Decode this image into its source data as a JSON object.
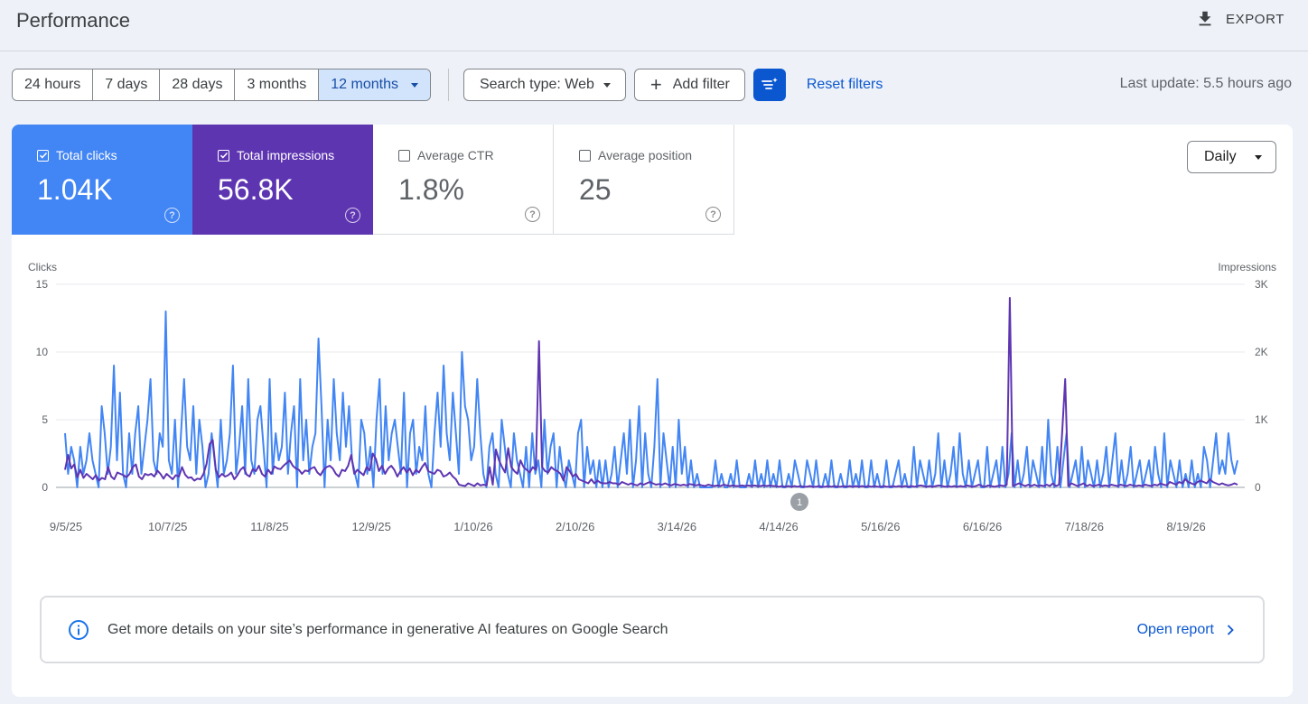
{
  "header": {
    "title": "Performance",
    "export_label": "EXPORT"
  },
  "filters": {
    "ranges": [
      {
        "label": "24 hours",
        "active": false
      },
      {
        "label": "7 days",
        "active": false
      },
      {
        "label": "28 days",
        "active": false
      },
      {
        "label": "3 months",
        "active": false
      },
      {
        "label": "12 months",
        "active": true
      }
    ],
    "search_type": "Search type: Web",
    "add_filter": "Add filter",
    "reset": "Reset filters",
    "last_update": "Last update: 5.5 hours ago"
  },
  "metrics": [
    {
      "label": "Total clicks",
      "value": "1.04K",
      "checked": true,
      "color": "#4285f4"
    },
    {
      "label": "Total impressions",
      "value": "56.8K",
      "checked": true,
      "color": "#5e35b1"
    },
    {
      "label": "Average CTR",
      "value": "1.8%",
      "checked": false
    },
    {
      "label": "Average position",
      "value": "25",
      "checked": false
    }
  ],
  "granularity": "Daily",
  "chart_data": {
    "type": "line",
    "y_left_label": "Clicks",
    "y_right_label": "Impressions",
    "y_left_ticks": [
      "15",
      "10",
      "5",
      "0"
    ],
    "y_right_ticks": [
      "3K",
      "2K",
      "1K",
      "0"
    ],
    "y_left_range": [
      0,
      15
    ],
    "y_right_range": [
      0,
      3000
    ],
    "x_ticks": [
      "9/5/25",
      "10/7/25",
      "11/8/25",
      "12/9/25",
      "1/10/26",
      "2/10/26",
      "3/14/26",
      "4/14/26",
      "5/16/26",
      "6/16/26",
      "7/18/26",
      "8/19/26"
    ],
    "annotation": "1",
    "grid": true,
    "series": [
      {
        "name": "Total clicks",
        "axis": "left",
        "color": "#4285f4",
        "values": [
          4,
          1,
          3,
          2,
          0,
          3,
          1,
          2,
          4,
          2,
          1,
          0,
          6,
          4,
          1,
          3,
          9,
          2,
          7,
          1,
          0,
          4,
          1,
          4,
          6,
          1,
          3,
          5,
          8,
          2,
          1,
          4,
          3,
          13,
          2,
          1,
          5,
          0,
          4,
          8,
          3,
          2,
          6,
          1,
          5,
          3,
          0,
          1,
          4,
          2,
          0,
          5,
          1,
          2,
          4,
          9,
          1,
          3,
          6,
          1,
          8,
          2,
          1,
          5,
          6,
          3,
          0,
          8,
          1,
          4,
          2,
          3,
          7,
          1,
          4,
          6,
          0,
          8,
          2,
          5,
          1,
          3,
          4,
          11,
          6,
          0,
          5,
          2,
          8,
          4,
          2,
          7,
          3,
          6,
          2,
          1,
          0,
          5,
          4,
          1,
          3,
          0,
          5,
          8,
          1,
          6,
          2,
          4,
          5,
          3,
          1,
          7,
          0,
          4,
          5,
          1,
          3,
          2,
          6,
          1,
          0,
          4,
          7,
          3,
          9,
          4,
          2,
          7,
          4,
          1,
          10,
          6,
          5,
          2,
          3,
          8,
          4,
          1,
          0,
          3,
          4,
          1,
          0,
          5,
          3,
          1,
          0,
          4,
          2,
          1,
          0,
          3,
          0,
          4,
          1,
          2,
          0,
          5,
          1,
          3,
          4,
          0,
          3,
          1,
          0,
          2,
          1,
          0,
          4,
          5,
          0,
          3,
          1,
          2,
          0,
          2,
          0,
          2,
          0,
          1,
          3,
          0,
          2,
          4,
          1,
          5,
          0,
          2,
          6,
          0,
          4,
          1,
          0,
          3,
          8,
          0,
          4,
          2,
          0,
          3,
          0,
          5,
          1,
          3,
          0,
          2,
          0,
          1,
          0,
          0,
          0,
          0,
          0,
          2,
          0,
          1,
          0,
          0,
          1,
          0,
          2,
          0,
          0,
          0,
          1,
          0,
          2,
          0,
          1,
          0,
          2,
          0,
          1,
          0,
          2,
          0,
          0,
          1,
          0,
          2,
          1,
          0,
          0,
          2,
          1,
          0,
          2,
          0,
          0,
          1,
          0,
          2,
          0,
          0,
          1,
          0,
          0,
          2,
          0,
          1,
          0,
          2,
          0,
          0,
          2,
          0,
          1,
          0,
          0,
          2,
          0,
          0,
          1,
          2,
          0,
          1,
          0,
          0,
          3,
          0,
          2,
          1,
          0,
          2,
          0,
          1,
          4,
          0,
          2,
          0,
          1,
          3,
          0,
          4,
          1,
          0,
          2,
          0,
          1,
          2,
          0,
          0,
          3,
          0,
          1,
          2,
          0,
          3,
          0,
          1,
          4,
          0,
          2,
          0,
          1,
          3,
          0,
          2,
          1,
          0,
          3,
          0,
          5,
          1,
          0,
          3,
          0,
          2,
          4,
          0,
          1,
          2,
          0,
          3,
          0,
          2,
          1,
          0,
          2,
          0,
          1,
          3,
          0,
          2,
          4,
          0,
          2,
          0,
          1,
          3,
          0,
          1,
          2,
          0,
          1,
          2,
          0,
          3,
          1,
          0,
          4,
          0,
          2,
          1,
          0,
          2,
          0,
          1,
          0,
          2,
          0,
          1,
          0,
          3,
          2,
          0,
          2,
          4,
          1,
          2,
          1,
          4,
          2,
          1,
          2
        ]
      },
      {
        "name": "Total impressions",
        "axis": "right",
        "color": "#5e35b1",
        "values": [
          260,
          480,
          280,
          340,
          150,
          260,
          140,
          200,
          160,
          120,
          180,
          100,
          140,
          120,
          300,
          160,
          120,
          220,
          200,
          180,
          150,
          200,
          300,
          340,
          160,
          120,
          200,
          180,
          200,
          160,
          250,
          200,
          130,
          200,
          160,
          120,
          180,
          160,
          300,
          190,
          140,
          150,
          100,
          130,
          120,
          200,
          350,
          640,
          700,
          260,
          150,
          200,
          160,
          180,
          220,
          120,
          180,
          260,
          300,
          190,
          160,
          270,
          240,
          320,
          200,
          160,
          260,
          200,
          310,
          280,
          270,
          320,
          360,
          400,
          320,
          280,
          260,
          200,
          250,
          240,
          280,
          300,
          220,
          180,
          260,
          300,
          320,
          280,
          200,
          160,
          260,
          240,
          320,
          480,
          200,
          260,
          220,
          180,
          300,
          250,
          500,
          420,
          240,
          320,
          200,
          280,
          320,
          260,
          160,
          240,
          300,
          220,
          280,
          180,
          260,
          220,
          300,
          360,
          240,
          220,
          200,
          260,
          240,
          160,
          180,
          220,
          160,
          120,
          40,
          30,
          20,
          60,
          40,
          20,
          60,
          30,
          40,
          30,
          300,
          40,
          560,
          400,
          300,
          220,
          580,
          300,
          240,
          200,
          400,
          300,
          260,
          220,
          300,
          260,
          2160,
          300,
          240,
          220,
          300,
          260,
          240,
          200,
          100,
          300,
          240,
          160,
          200,
          120,
          100,
          80,
          60,
          120,
          60,
          100,
          70,
          60,
          60,
          80,
          60,
          60,
          40,
          80,
          60,
          40,
          60,
          40,
          30,
          60,
          40,
          60,
          80,
          60,
          40,
          50,
          40,
          60,
          40,
          30,
          50,
          40,
          30,
          40,
          30,
          50,
          40,
          30,
          40,
          30,
          20,
          40,
          30,
          20,
          30,
          20,
          40,
          30,
          20,
          30,
          20,
          20,
          30,
          20,
          30,
          20,
          30,
          20,
          20,
          30,
          20,
          30,
          20,
          20,
          10,
          20,
          10,
          20,
          10,
          20,
          10,
          20,
          10,
          10,
          20,
          10,
          10,
          20,
          10,
          10,
          20,
          10,
          20,
          10,
          10,
          20,
          10,
          20,
          10,
          20,
          10,
          20,
          10,
          20,
          10,
          20,
          10,
          10,
          20,
          10,
          10,
          20,
          10,
          20,
          10,
          20,
          10,
          20,
          10,
          20,
          30,
          20,
          10,
          20,
          10,
          20,
          30,
          20,
          10,
          20,
          10,
          20,
          10,
          20,
          10,
          30,
          20,
          10,
          20,
          40,
          20,
          10,
          30,
          20,
          10,
          20,
          30,
          20,
          40,
          2800,
          20,
          40,
          60,
          40,
          20,
          40,
          20,
          40,
          20,
          30,
          20,
          40,
          20,
          60,
          20,
          40,
          800,
          1600,
          20,
          60,
          40,
          20,
          40,
          60,
          20,
          40,
          20,
          30,
          40,
          20,
          30,
          20,
          40,
          30,
          20,
          40,
          30,
          20,
          40,
          30,
          20,
          30,
          20,
          40,
          30,
          20,
          40,
          30,
          60,
          40,
          30,
          80,
          60,
          40,
          80,
          60,
          120,
          80,
          60,
          40,
          80,
          100,
          80,
          60,
          120,
          80,
          60,
          40,
          60,
          40,
          30,
          40,
          60,
          40
        ]
      }
    ]
  },
  "banner": {
    "text": "Get more details on your site’s performance in generative AI features on Google Search",
    "link": "Open report"
  }
}
